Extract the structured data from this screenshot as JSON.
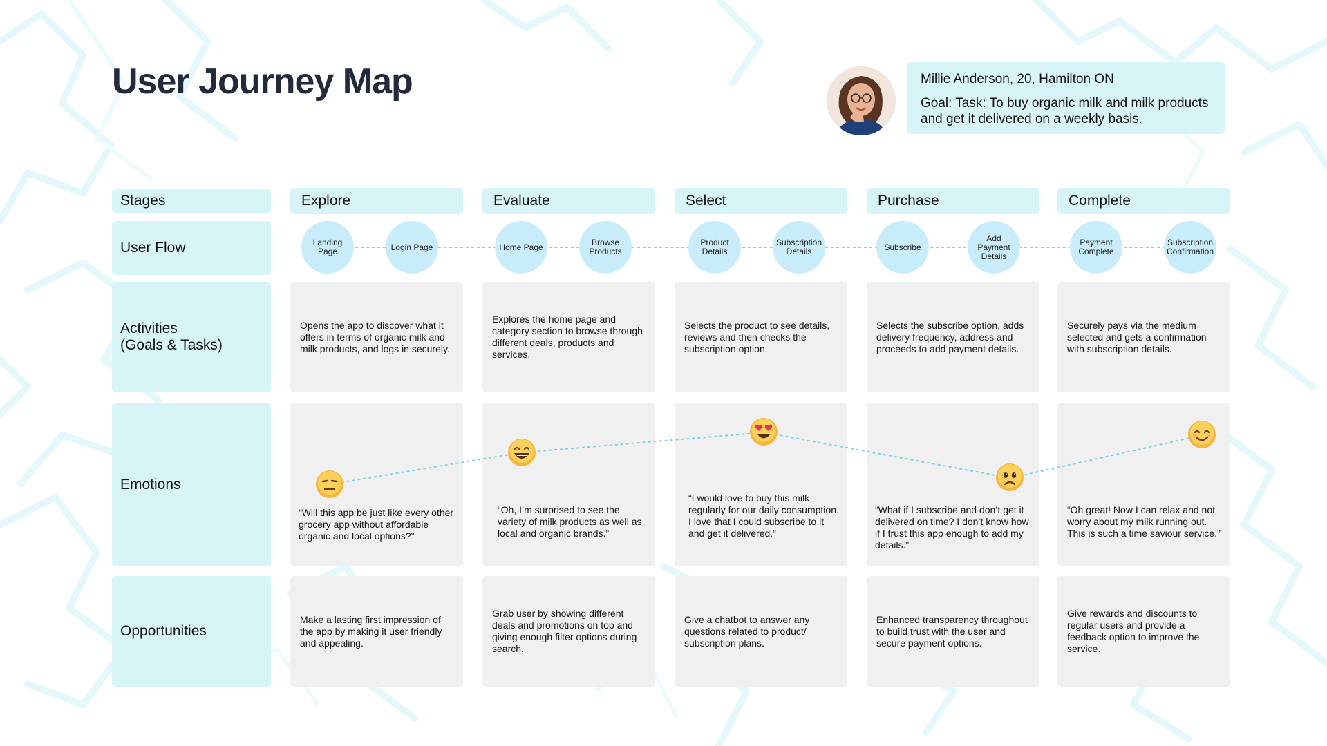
{
  "title": "User Journey Map",
  "persona": {
    "name": "Millie Anderson, 20, Hamilton ON",
    "goal": "Goal: Task: To buy organic milk and milk products and get it delivered on a weekly basis."
  },
  "row_labels": {
    "stages": "Stages",
    "user_flow": "User Flow",
    "activities": "Activities\n(Goals & Tasks)",
    "emotions": "Emotions",
    "opportunities": "Opportunities"
  },
  "stages": [
    {
      "name": "Explore",
      "flow": [
        "Landing Page",
        "Login Page"
      ],
      "activity": "Opens the app to discover what it offers in terms of organic milk and milk products, and logs in securely.",
      "emotion": {
        "face": "neutral-face",
        "quote": "“Will this app be just like every other grocery app without affordable organic and local options?”"
      },
      "opportunity": "Make a lasting first impression of the app by making it user friendly and appealing."
    },
    {
      "name": "Evaluate",
      "flow": [
        "Home Page",
        "Browse Products"
      ],
      "activity": "Explores the home page and category section to browse through different deals, products and services.",
      "emotion": {
        "face": "grinning-face",
        "quote": "“Oh, I’m surprised to see the variety of milk products as well as local and organic brands.”"
      },
      "opportunity": "Grab user by showing different deals and promotions on top and giving enough filter options during search."
    },
    {
      "name": "Select",
      "flow": [
        "Product Details",
        "Subscription Details"
      ],
      "activity": "Selects the product to see details, reviews and then checks the subscription option.",
      "emotion": {
        "face": "heart-eyes-face",
        "quote": "“I would love to buy this milk regularly for our daily consumption. I love that I could subscribe to it and get it delivered.”"
      },
      "opportunity": "Give a chatbot to answer any questions related to product/ subscription plans."
    },
    {
      "name": "Purchase",
      "flow": [
        "Subscribe",
        "Add Payment Details"
      ],
      "activity": "Selects the subscribe option, adds delivery frequency, address and proceeds to add payment details.",
      "emotion": {
        "face": "worried-face",
        "quote": "“What if I subscribe and don’t get it delivered on time? I don’t know how if I trust this app enough to add my details.”"
      },
      "opportunity": "Enhanced transparency throughout to build trust with the user and secure payment options."
    },
    {
      "name": "Complete",
      "flow": [
        "Payment Complete",
        "Subscription Confirmation"
      ],
      "activity": "Securely pays via the medium selected and gets a confirmation with subscription details.",
      "emotion": {
        "face": "smiling-face",
        "quote": "“Oh great! Now I can relax and not worry about my milk running out. This is such a time saviour service.”"
      },
      "opportunity": "Give rewards and discounts to regular users and provide a feedback option to improve the service."
    }
  ],
  "colors": {
    "label_bg": "#d7f4f7",
    "cell_bg": "#f0f0f0",
    "circle_bg": "#c9ecfa",
    "connector": "#7fd3e0",
    "title": "#232a3c"
  }
}
